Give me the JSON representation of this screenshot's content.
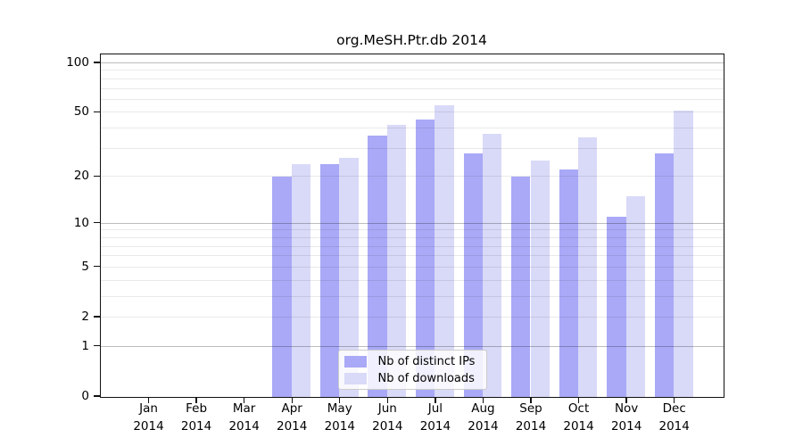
{
  "chart_data": {
    "type": "bar",
    "title": "org.MeSH.Ptr.db 2014",
    "categories": [
      "Jan",
      "Feb",
      "Mar",
      "Apr",
      "May",
      "Jun",
      "Jul",
      "Aug",
      "Sep",
      "Oct",
      "Nov",
      "Dec"
    ],
    "category_year": "2014",
    "series": [
      {
        "name": "Nb of distinct IPs",
        "color": "#a9a9f7",
        "values": [
          0,
          0,
          0,
          20,
          24,
          36,
          45,
          28,
          20,
          22,
          11,
          28
        ]
      },
      {
        "name": "Nb of downloads",
        "color": "#d9d9f8",
        "values": [
          0,
          0,
          0,
          24,
          26,
          42,
          55,
          37,
          25,
          35,
          15,
          51
        ]
      }
    ],
    "xlabel": "",
    "ylabel": "",
    "ylim": [
      0,
      100
    ],
    "y_scale": "log1p",
    "y_tick_labels": [
      "100",
      "50",
      "20",
      "10",
      "5",
      "2",
      "1",
      "0"
    ],
    "y_tick_values": [
      100,
      50,
      20,
      10,
      5,
      2,
      1,
      0
    ],
    "major_gridlines": [
      100,
      10,
      1
    ],
    "minor_gridlines": [
      90,
      80,
      70,
      60,
      50,
      40,
      30,
      20,
      9,
      8,
      7,
      6,
      5,
      4,
      3,
      2
    ],
    "grid": "on",
    "legend_position": "bottom-center"
  },
  "colors": {
    "background": "#ffffff",
    "frame": "#111111",
    "distinct_ips": "#a9a9f7",
    "downloads": "#d9d9f8",
    "major_grid": "rgba(0,0,0,0.26)",
    "minor_grid": "rgba(0,0,0,0.085)"
  }
}
